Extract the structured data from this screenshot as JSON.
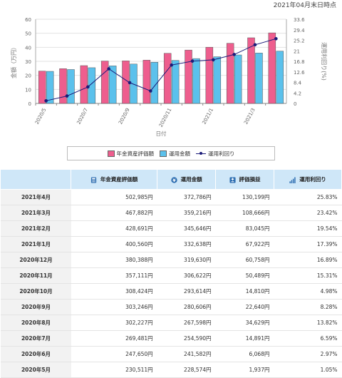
{
  "as_of": "2021年04月末日時点",
  "chart_data": {
    "type": "bar",
    "categories": [
      "2020/5",
      "2020/6",
      "2020/7",
      "2020/8",
      "2020/9",
      "2020/10",
      "2020/11",
      "2020/12",
      "2021/1",
      "2021/2",
      "2021/3",
      "2021/4"
    ],
    "tick_labels": [
      "2020/5",
      "2020/7",
      "2020/9",
      "2020/11",
      "2021/1",
      "2021/3"
    ],
    "series": [
      {
        "name": "年金資産評価額",
        "type": "bar",
        "axis": "left",
        "color": "#ee5e8e",
        "values": [
          23.05,
          24.77,
          26.95,
          30.22,
          30.32,
          30.84,
          35.71,
          38.04,
          40.06,
          42.87,
          46.79,
          50.3
        ]
      },
      {
        "name": "運用金額",
        "type": "bar",
        "axis": "left",
        "color": "#5bc1ec",
        "values": [
          22.86,
          24.16,
          25.46,
          26.76,
          28.06,
          29.36,
          30.66,
          31.96,
          33.26,
          34.56,
          35.92,
          37.28
        ]
      },
      {
        "name": "運用利回り",
        "type": "line",
        "axis": "right",
        "color": "#1c1c7a",
        "values": [
          1.05,
          2.97,
          6.59,
          13.82,
          8.28,
          4.98,
          15.31,
          16.89,
          17.39,
          19.54,
          23.42,
          25.83
        ]
      }
    ],
    "ylabel_left": "金額（万円）",
    "ylabel_right": "運用利回り(%)",
    "xlabel": "日付",
    "ylim_left": [
      0,
      60
    ],
    "ylim_right": [
      0,
      33.6
    ],
    "yticks_left": [
      "0",
      "10",
      "20",
      "30",
      "40",
      "50",
      "60"
    ],
    "yticks_right": [
      "0",
      "4.2",
      "8.4",
      "12.6",
      "16.8",
      "21",
      "25.2",
      "29.4",
      "33.6"
    ],
    "grid": true,
    "legend_position": "bottom"
  },
  "table": {
    "headers": [
      {
        "label": "年金資産評価額",
        "icon": "calculator-icon",
        "color": "#2b6cb0"
      },
      {
        "label": "運用金額",
        "icon": "yen-coin-icon",
        "color": "#2b6cb0"
      },
      {
        "label": "評価損益",
        "icon": "plus-minus-icon",
        "color": "#2b6cb0"
      },
      {
        "label": "運用利回り",
        "icon": "bar-growth-icon",
        "color": "#2b6cb0"
      }
    ],
    "rows": [
      {
        "month": "2021年4月",
        "value": "502,985円",
        "invested": "372,786円",
        "gain": "130,199円",
        "yield": "25.83%"
      },
      {
        "month": "2021年3月",
        "value": "467,882円",
        "invested": "359,216円",
        "gain": "108,666円",
        "yield": "23.42%"
      },
      {
        "month": "2021年2月",
        "value": "428,691円",
        "invested": "345,646円",
        "gain": "83,045円",
        "yield": "19.54%"
      },
      {
        "month": "2021年1月",
        "value": "400,560円",
        "invested": "332,638円",
        "gain": "67,922円",
        "yield": "17.39%"
      },
      {
        "month": "2020年12月",
        "value": "380,388円",
        "invested": "319,630円",
        "gain": "60,758円",
        "yield": "16.89%"
      },
      {
        "month": "2020年11月",
        "value": "357,111円",
        "invested": "306,622円",
        "gain": "50,489円",
        "yield": "15.31%"
      },
      {
        "month": "2020年10月",
        "value": "308,424円",
        "invested": "293,614円",
        "gain": "14,810円",
        "yield": "4.98%"
      },
      {
        "month": "2020年9月",
        "value": "303,246円",
        "invested": "280,606円",
        "gain": "22,640円",
        "yield": "8.28%"
      },
      {
        "month": "2020年8月",
        "value": "302,227円",
        "invested": "267,598円",
        "gain": "34,629円",
        "yield": "13.82%"
      },
      {
        "month": "2020年7月",
        "value": "269,481円",
        "invested": "254,590円",
        "gain": "14,891円",
        "yield": "6.59%"
      },
      {
        "month": "2020年6月",
        "value": "247,650円",
        "invested": "241,582円",
        "gain": "6,068円",
        "yield": "2.97%"
      },
      {
        "month": "2020年5月",
        "value": "230,511円",
        "invested": "228,574円",
        "gain": "1,937円",
        "yield": "1.05%"
      }
    ]
  }
}
